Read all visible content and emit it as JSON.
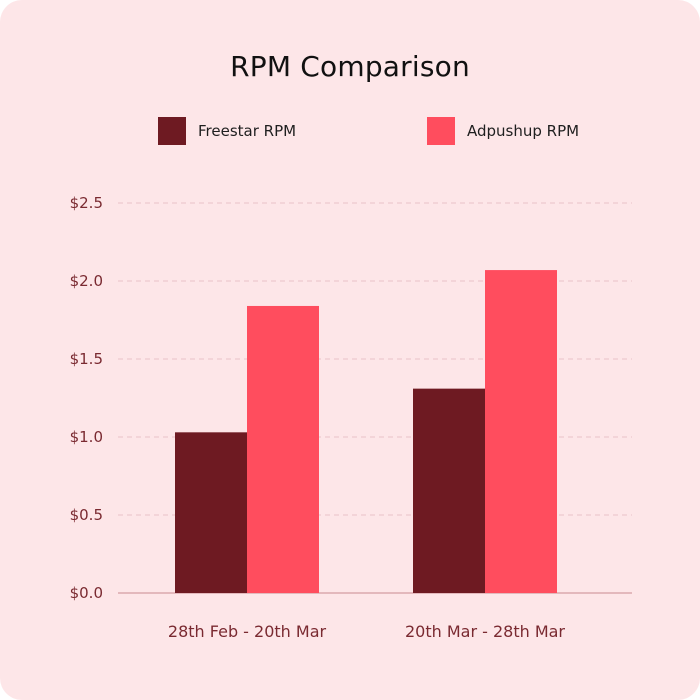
{
  "chart_data": {
    "type": "bar",
    "title": "RPM Comparison",
    "categories": [
      "28th Feb - 20th Mar",
      "20th Mar - 28th Mar"
    ],
    "series": [
      {
        "name": "Freestar RPM",
        "values": [
          1.03,
          1.31
        ],
        "color": "#6e1a22"
      },
      {
        "name": "Adpushup RPM",
        "values": [
          1.84,
          2.07
        ],
        "color": "#ff4d5e"
      }
    ],
    "yticks": [
      "$0.0",
      "$0.5",
      "$1.0",
      "$1.5",
      "$2.0",
      "$2.5"
    ],
    "ylim": [
      0,
      2.5
    ],
    "grid": true,
    "legend_position": "top"
  },
  "colors": {
    "background": "#fde6e8",
    "axis_text": "#7a2a31",
    "grid": "#e9c3c7"
  }
}
